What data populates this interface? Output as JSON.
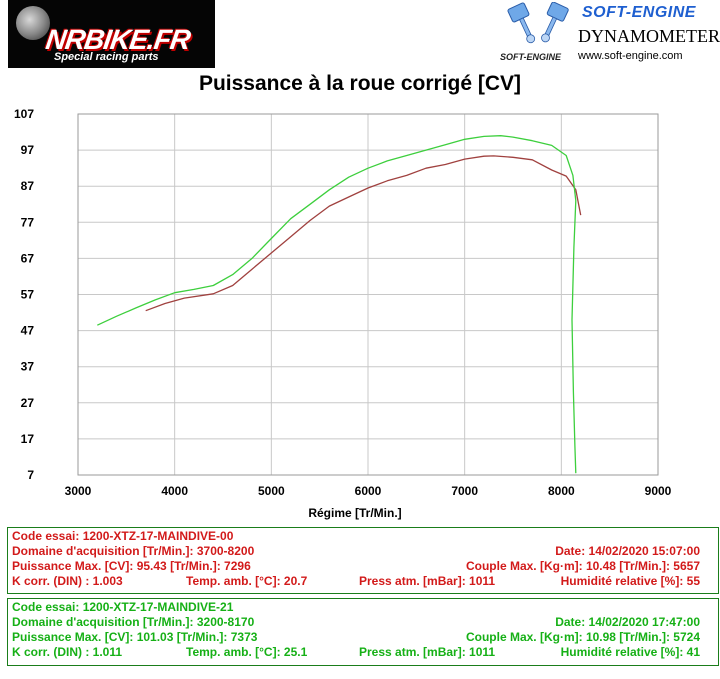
{
  "header": {
    "left_brand": "NRBIKE.FR",
    "left_tagline": "Special racing parts",
    "right_brand": "SOFT-ENGINE",
    "right_small": "SOFT-ENGINE",
    "right_sub": "DYNAMOMETERS",
    "right_url": "www.soft-engine.com"
  },
  "chart_data": {
    "type": "line",
    "title": "Puissance à la roue corrigé [CV]",
    "xlabel": "Régime [Tr/Min.]",
    "ylabel": "",
    "xlim": [
      3000,
      9000
    ],
    "ylim": [
      7,
      107
    ],
    "x_ticks": [
      "3000",
      "4000",
      "5000",
      "6000",
      "7000",
      "8000",
      "9000"
    ],
    "y_ticks": [
      "107",
      "97",
      "87",
      "77",
      "67",
      "57",
      "47",
      "37",
      "27",
      "17",
      "7"
    ],
    "grid": true,
    "series": [
      {
        "color": "#a0413f",
        "points": [
          [
            3700,
            52.5
          ],
          [
            3900,
            54.5
          ],
          [
            4100,
            56.0
          ],
          [
            4400,
            57.2
          ],
          [
            4600,
            59.5
          ],
          [
            4800,
            64.0
          ],
          [
            5000,
            68.5
          ],
          [
            5200,
            73.0
          ],
          [
            5400,
            77.5
          ],
          [
            5600,
            81.5
          ],
          [
            5800,
            84.0
          ],
          [
            6000,
            86.5
          ],
          [
            6200,
            88.5
          ],
          [
            6400,
            90.0
          ],
          [
            6600,
            92.0
          ],
          [
            6800,
            93.0
          ],
          [
            7000,
            94.5
          ],
          [
            7200,
            95.3
          ],
          [
            7300,
            95.4
          ],
          [
            7500,
            95.0
          ],
          [
            7700,
            94.3
          ],
          [
            7900,
            91.5
          ],
          [
            8050,
            89.8
          ],
          [
            8150,
            86.0
          ],
          [
            8200,
            79.0
          ]
        ]
      },
      {
        "color": "#3dcf3d",
        "points": [
          [
            3200,
            48.5
          ],
          [
            3400,
            51.0
          ],
          [
            3600,
            53.3
          ],
          [
            3800,
            55.5
          ],
          [
            4000,
            57.5
          ],
          [
            4200,
            58.4
          ],
          [
            4400,
            59.5
          ],
          [
            4600,
            62.5
          ],
          [
            4800,
            67.0
          ],
          [
            5000,
            72.5
          ],
          [
            5200,
            78.0
          ],
          [
            5400,
            82.0
          ],
          [
            5600,
            86.0
          ],
          [
            5800,
            89.5
          ],
          [
            6000,
            92.0
          ],
          [
            6200,
            94.0
          ],
          [
            6400,
            95.5
          ],
          [
            6600,
            97.0
          ],
          [
            6800,
            98.5
          ],
          [
            7000,
            100.0
          ],
          [
            7200,
            100.8
          ],
          [
            7373,
            101.0
          ],
          [
            7500,
            100.6
          ],
          [
            7700,
            99.6
          ],
          [
            7900,
            98.3
          ],
          [
            8050,
            95.5
          ],
          [
            8120,
            90.0
          ],
          [
            8150,
            83.0
          ],
          [
            8130,
            70.0
          ],
          [
            8110,
            50.0
          ],
          [
            8125,
            30.0
          ],
          [
            8140,
            15.0
          ],
          [
            8150,
            7.5
          ]
        ]
      }
    ]
  },
  "panels": [
    {
      "code": "Code essai: 1200-XTZ-17-MAINDIVE-00",
      "domaine": "Domaine d'acquisition [Tr/Min.]: 3700-8200",
      "date": "Date: 14/02/2020   15:07:00",
      "puissance": "Puissance Max. [CV]: 95.43   [Tr/Min.]: 7296",
      "couple": "Couple Max. [Kg·m]: 10.48   [Tr/Min.]: 5657",
      "kcorr": "K corr. (DIN) : 1.003",
      "temp": "Temp. amb. [°C]: 20.7",
      "press": "Press atm. [mBar]: 1011",
      "humid": "Humidité relative [%]: 55"
    },
    {
      "code": "Code essai: 1200-XTZ-17-MAINDIVE-21",
      "domaine": "Domaine d'acquisition [Tr/Min.]: 3200-8170",
      "date": "Date: 14/02/2020   17:47:00",
      "puissance": "Puissance Max. [CV]: 101.03   [Tr/Min.]: 7373",
      "couple": "Couple Max. [Kg·m]: 10.98   [Tr/Min.]: 5724",
      "kcorr": "K corr. (DIN) : 1.011",
      "temp": "Temp. amb. [°C]: 25.1",
      "press": "Press atm. [mBar]: 1011",
      "humid": "Humidité relative [%]: 41"
    }
  ]
}
